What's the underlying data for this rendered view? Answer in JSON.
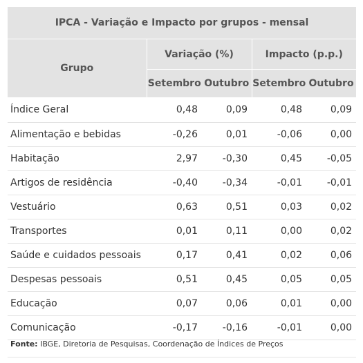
{
  "title": "IPCA - Variação e Impacto por grupos - mensal",
  "headers": {
    "grupo": "Grupo",
    "variacao": "Variação (%)",
    "impacto": "Impacto (p.p.)",
    "setembro": "Setembro",
    "outubro": "Outubro"
  },
  "rows": [
    {
      "grupo": "Índice Geral",
      "var_set": "0,48",
      "var_out": "0,09",
      "imp_set": "0,48",
      "imp_out": "0,09"
    },
    {
      "grupo": "Alimentação e bebidas",
      "var_set": "-0,26",
      "var_out": "0,01",
      "imp_set": "-0,06",
      "imp_out": "0,00"
    },
    {
      "grupo": "Habitação",
      "var_set": "2,97",
      "var_out": "-0,30",
      "imp_set": "0,45",
      "imp_out": "-0,05"
    },
    {
      "grupo": "Artigos de residência",
      "var_set": "-0,40",
      "var_out": "-0,34",
      "imp_set": "-0,01",
      "imp_out": "-0,01"
    },
    {
      "grupo": "Vestuário",
      "var_set": "0,63",
      "var_out": "0,51",
      "imp_set": "0,03",
      "imp_out": "0,02"
    },
    {
      "grupo": "Transportes",
      "var_set": "0,01",
      "var_out": "0,11",
      "imp_set": "0,00",
      "imp_out": "0,02"
    },
    {
      "grupo": "Saúde e cuidados pessoais",
      "var_set": "0,17",
      "var_out": "0,41",
      "imp_set": "0,02",
      "imp_out": "0,06"
    },
    {
      "grupo": "Despesas pessoais",
      "var_set": "0,51",
      "var_out": "0,45",
      "imp_set": "0,05",
      "imp_out": "0,05"
    },
    {
      "grupo": "Educação",
      "var_set": "0,07",
      "var_out": "0,06",
      "imp_set": "0,01",
      "imp_out": "0,00"
    },
    {
      "grupo": "Comunicação",
      "var_set": "-0,17",
      "var_out": "-0,16",
      "imp_set": "-0,01",
      "imp_out": "0,00"
    }
  ],
  "source": {
    "label": "Fonte:",
    "text": " IBGE, Diretoria de Pesquisas, Coordenação de Índices de Preços"
  }
}
